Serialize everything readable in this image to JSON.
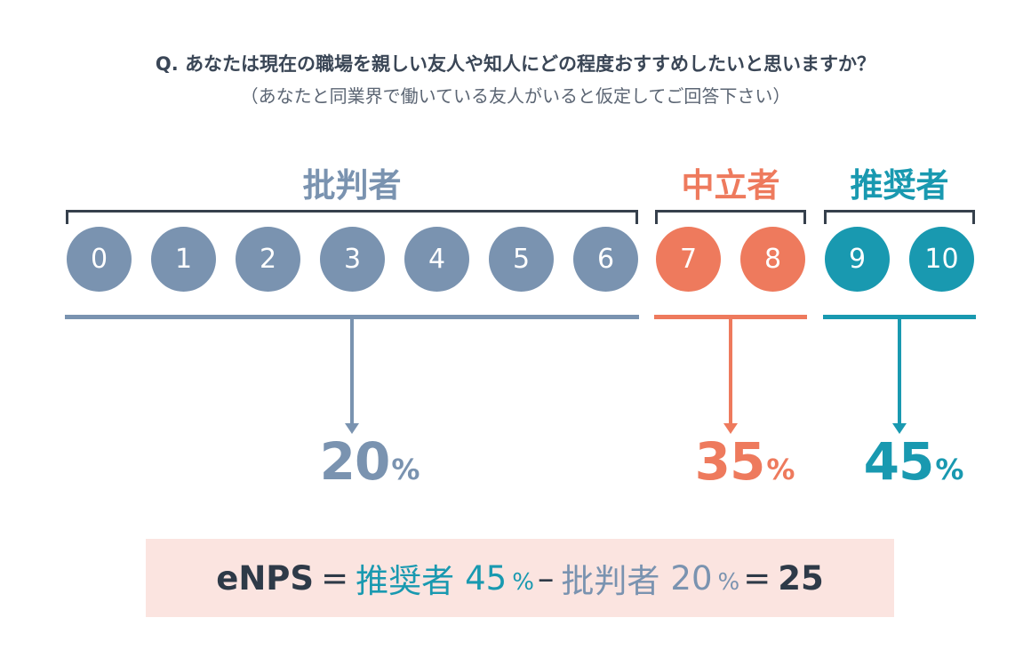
{
  "question": "Q. あなたは現在の職場を親しい友人や知人にどの程度おすすめしたいと思いますか？",
  "note": "（あなたと同業界で働いている友人がいると仮定してご回答下さい）",
  "colors": {
    "detractor": "#7a93b0",
    "passive": "#ee7a5d",
    "promoter": "#1999b0",
    "bracket": "#36404c",
    "formula_bg": "#fbe4e0"
  },
  "groups": {
    "detractors": {
      "label": "批判者",
      "percent": "20",
      "unit": "%"
    },
    "passives": {
      "label": "中立者",
      "percent": "35",
      "unit": "%"
    },
    "promoters": {
      "label": "推奨者",
      "percent": "45",
      "unit": "%"
    }
  },
  "scores": [
    "0",
    "1",
    "2",
    "3",
    "4",
    "5",
    "6",
    "7",
    "8",
    "9",
    "10"
  ],
  "formula": {
    "enps": "eNPS",
    "equals": "=",
    "promoter_label": "推奨者",
    "promoter_value": "45",
    "unit": "%",
    "minus": "–",
    "detractor_label": "批判者",
    "detractor_value": "20",
    "result": "25"
  }
}
